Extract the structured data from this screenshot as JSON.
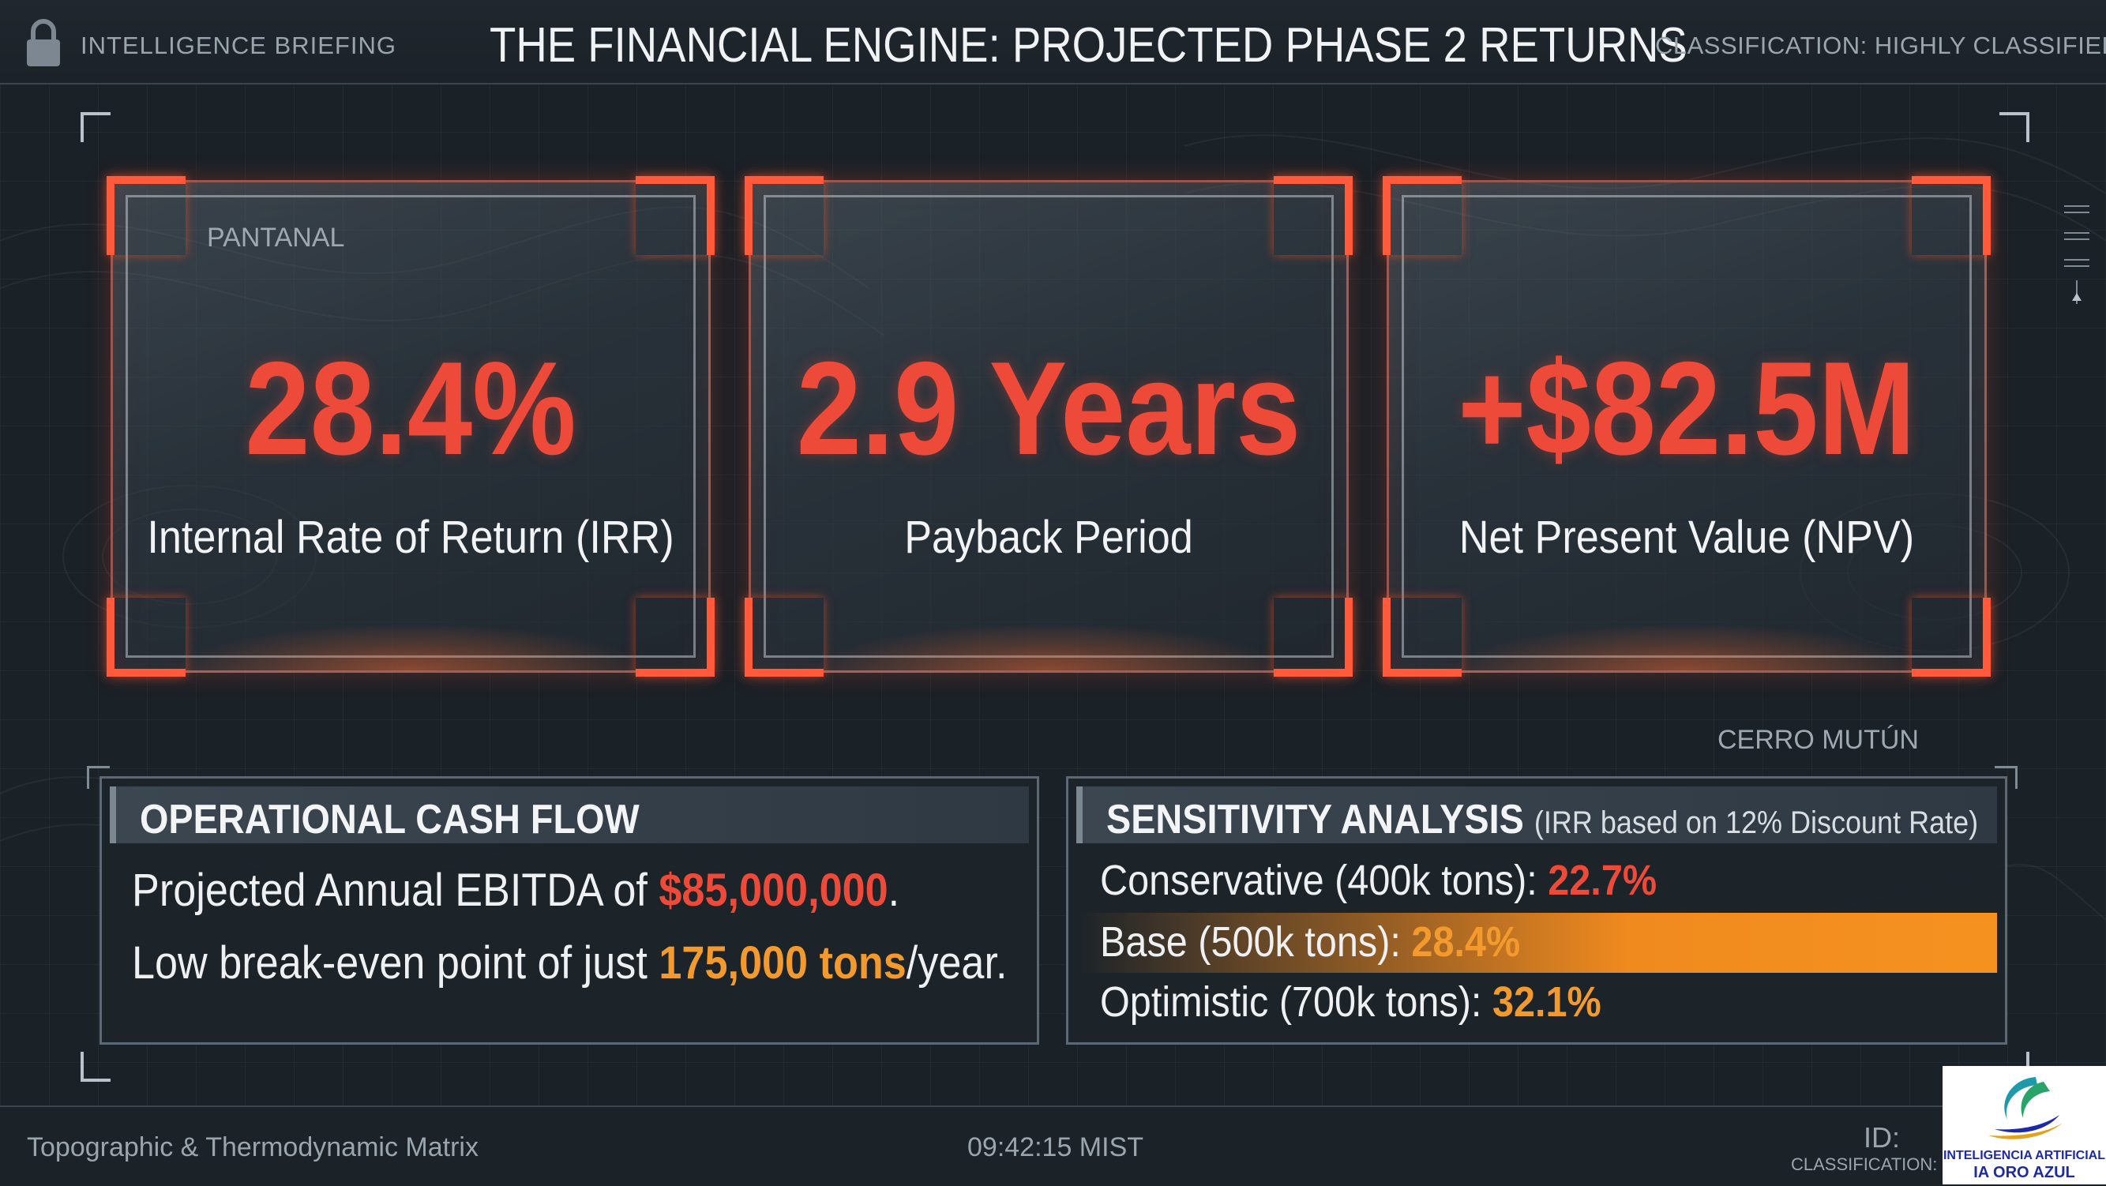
{
  "header": {
    "brief_label": "INTELLIGENCE BRIEFING",
    "title": "THE FINANCIAL ENGINE: PROJECTED PHASE 2 RETURNS",
    "classification": "CLASSIFICATION: HIGHLY CLASSIFIED",
    "lock_icon": "lock-icon"
  },
  "map_labels": {
    "pantanal": "PANTANAL",
    "cerro_mutun": "CERRO MUTÚN"
  },
  "kpis": [
    {
      "value": "28.4%",
      "label": "Internal Rate of Return (IRR)"
    },
    {
      "value": "2.9 Years",
      "label": "Payback Period"
    },
    {
      "value": "+$82.5M",
      "label": "Net Present Value (NPV)"
    }
  ],
  "cash_flow": {
    "title": "OPERATIONAL CASH FLOW",
    "line1_prefix": "Projected Annual EBITDA of ",
    "line1_value": "$85,000,000",
    "line1_suffix": ".",
    "line2_prefix": "Low break-even point of just ",
    "line2_value": "175,000 tons",
    "line2_suffix": "/year."
  },
  "sensitivity": {
    "title": "SENSITIVITY ANALYSIS",
    "subtitle": "(IRR based on 12% Discount Rate)",
    "rows": [
      {
        "label": "Conservative (400k tons): ",
        "value": "22.7%"
      },
      {
        "label": "Base (500k tons): ",
        "value": "28.4%"
      },
      {
        "label": "Optimistic (700k tons): ",
        "value": "32.1%"
      }
    ]
  },
  "footer": {
    "left": "Topographic & Thermodynamic Matrix",
    "time": "09:42:15 MIST",
    "id": "ID: ",
    "classification": "CLASSIFICATION: I"
  },
  "logo": {
    "line1": "INTELIGENCIA ARTIFICIAL",
    "line2": "IA ORO AZUL"
  },
  "colors": {
    "accent_red": "#ee4a3a",
    "accent_orange": "#f39a2e",
    "background": "#1a2127"
  }
}
